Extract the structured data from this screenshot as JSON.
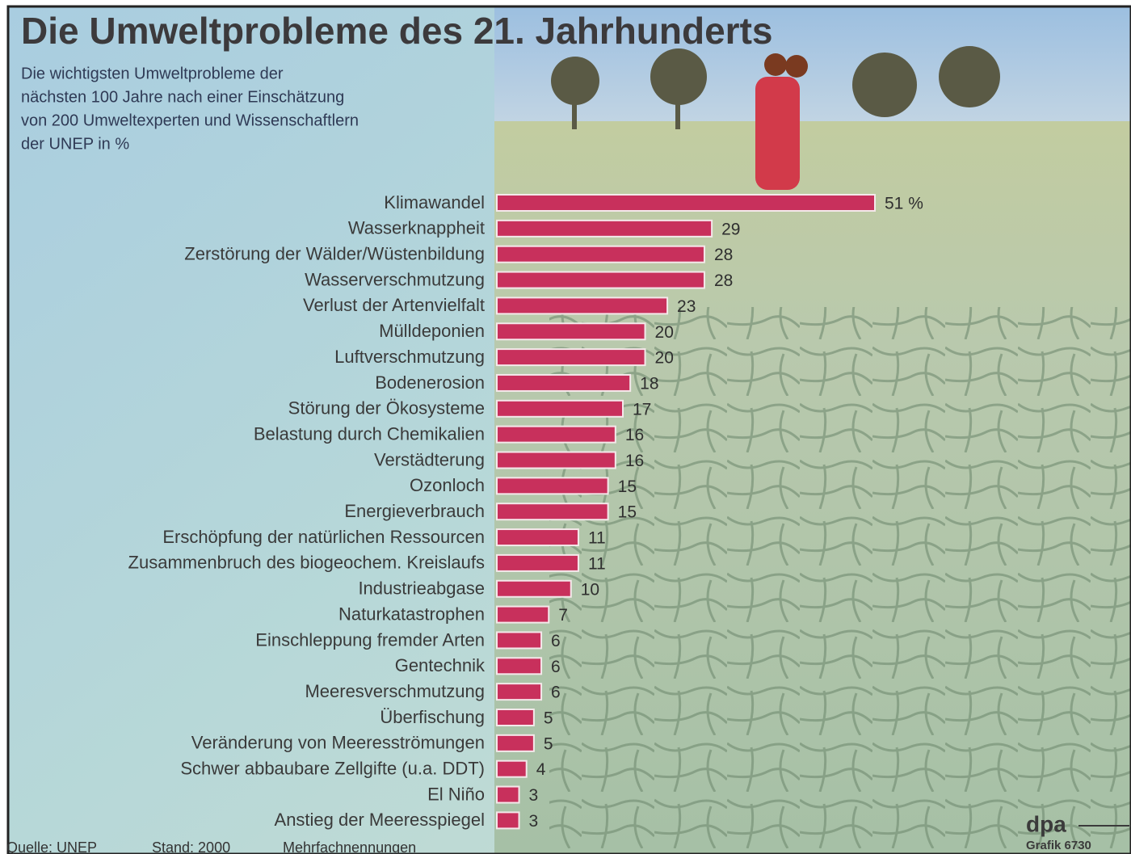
{
  "chart_data": {
    "type": "barh",
    "title": "Die Umweltprobleme des 21. Jahrhunderts",
    "subtitle": [
      "Die wichtigsten Umweltprobleme der",
      "nächsten 100 Jahre nach einer Einschätzung",
      "von 200 Umweltexperten und Wissenschaftlern",
      "der UNEP in %"
    ],
    "categories": [
      "Klimawandel",
      "Wasserknappheit",
      "Zerstörung der Wälder/Wüstenbildung",
      "Wasserverschmutzung",
      "Verlust der Artenvielfalt",
      "Mülldeponien",
      "Luftverschmutzung",
      "Bodenerosion",
      "Störung der Ökosysteme",
      "Belastung durch Chemikalien",
      "Verstädterung",
      "Ozonloch",
      "Energieverbrauch",
      "Erschöpfung der natürlichen Ressourcen",
      "Zusammenbruch des biogeochem. Kreislaufs",
      "Industrieabgase",
      "Naturkatastrophen",
      "Einschleppung fremder Arten",
      "Gentechnik",
      "Meeresverschmutzung",
      "Überfischung",
      "Veränderung von Meeresströmungen",
      "Schwer abbaubare Zellgifte (u.a. DDT)",
      "El Niño",
      "Anstieg der Meeresspiegel"
    ],
    "values": [
      51,
      29,
      28,
      28,
      23,
      20,
      20,
      18,
      17,
      16,
      16,
      15,
      15,
      11,
      11,
      10,
      7,
      6,
      6,
      6,
      5,
      5,
      4,
      3,
      3
    ],
    "value_labels": [
      "51 %",
      "29",
      "28",
      "28",
      "23",
      "20",
      "20",
      "18",
      "17",
      "16",
      "16",
      "15",
      "15",
      "11",
      "11",
      "10",
      "7",
      "6",
      "6",
      "6",
      "5",
      "5",
      "4",
      "3",
      "3"
    ],
    "color": "#c8305c",
    "source": "Quelle: UNEP",
    "status": "Stand: 2000",
    "note": "Mehrfachnennungen",
    "credit": "dpa",
    "graphic_id": "Grafik 6730"
  }
}
